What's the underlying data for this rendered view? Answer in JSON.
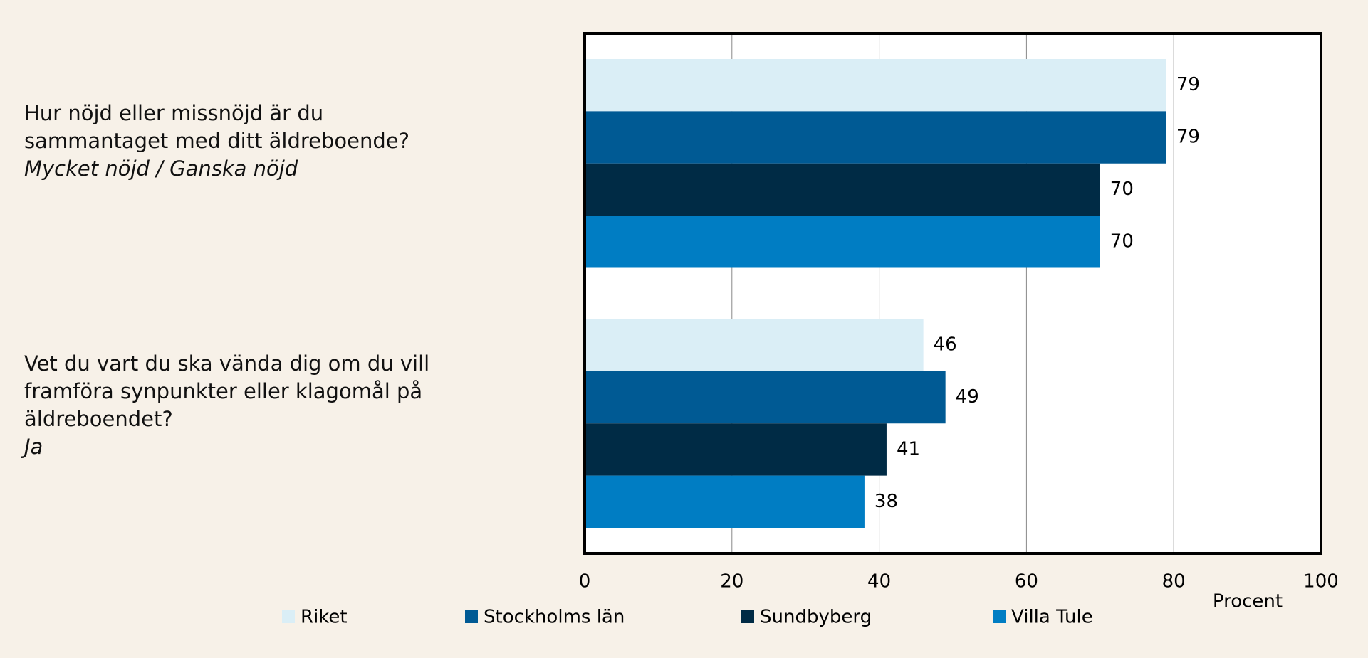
{
  "chart_data": {
    "type": "bar",
    "orientation": "horizontal",
    "categories": [
      "Hur nöjd eller missnöjd är du sammantaget med ditt äldreboende?",
      "Vet du vart du ska vända dig om du vill framföra synpunkter eller klagomål på äldreboendet?"
    ],
    "category_notes": [
      "Mycket nöjd / Ganska nöjd",
      "Ja"
    ],
    "series": [
      {
        "name": "Riket",
        "color": "#daeef6",
        "values": [
          79,
          46
        ]
      },
      {
        "name": "Stockholms län",
        "color": "#005a94",
        "values": [
          79,
          49
        ]
      },
      {
        "name": "Sundbyberg",
        "color": "#002b45",
        "values": [
          70,
          41
        ]
      },
      {
        "name": "Villa Tule",
        "color": "#007dc3",
        "values": [
          70,
          38
        ]
      }
    ],
    "xlabel": "Procent",
    "xlim": [
      0,
      100
    ],
    "xticks": [
      0,
      20,
      40,
      60,
      80,
      100
    ],
    "grid": true,
    "legend": "bottom"
  }
}
